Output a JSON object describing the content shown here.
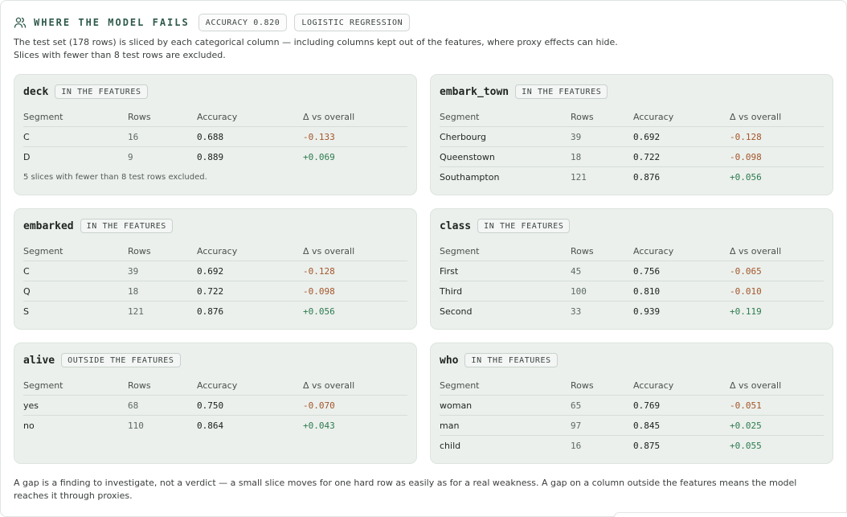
{
  "header": {
    "title": "WHERE THE MODEL FAILS",
    "accuracy_badge": "ACCURACY 0.820",
    "model_badge": "LOGISTIC REGRESSION",
    "icon": "users-icon"
  },
  "intro": {
    "line1": "The test set (178 rows) is sliced by each categorical column — including columns kept out of the features, where proxy effects can hide.",
    "line2": "Slices with fewer than 8 test rows are excluded."
  },
  "table_headers": {
    "segment": "Segment",
    "rows": "Rows",
    "accuracy": "Accuracy",
    "delta": "Δ vs overall"
  },
  "cards": [
    {
      "column": "deck",
      "tag": "IN THE FEATURES",
      "rows": [
        {
          "segment": "C",
          "rows": "16",
          "accuracy": "0.688",
          "delta": "-0.133",
          "sign": "neg"
        },
        {
          "segment": "D",
          "rows": "9",
          "accuracy": "0.889",
          "delta": "+0.069",
          "sign": "pos"
        }
      ],
      "note": "5 slices with fewer than 8 test rows excluded."
    },
    {
      "column": "embark_town",
      "tag": "IN THE FEATURES",
      "rows": [
        {
          "segment": "Cherbourg",
          "rows": "39",
          "accuracy": "0.692",
          "delta": "-0.128",
          "sign": "neg"
        },
        {
          "segment": "Queenstown",
          "rows": "18",
          "accuracy": "0.722",
          "delta": "-0.098",
          "sign": "neg"
        },
        {
          "segment": "Southampton",
          "rows": "121",
          "accuracy": "0.876",
          "delta": "+0.056",
          "sign": "pos"
        }
      ]
    },
    {
      "column": "embarked",
      "tag": "IN THE FEATURES",
      "rows": [
        {
          "segment": "C",
          "rows": "39",
          "accuracy": "0.692",
          "delta": "-0.128",
          "sign": "neg"
        },
        {
          "segment": "Q",
          "rows": "18",
          "accuracy": "0.722",
          "delta": "-0.098",
          "sign": "neg"
        },
        {
          "segment": "S",
          "rows": "121",
          "accuracy": "0.876",
          "delta": "+0.056",
          "sign": "pos"
        }
      ]
    },
    {
      "column": "class",
      "tag": "IN THE FEATURES",
      "rows": [
        {
          "segment": "First",
          "rows": "45",
          "accuracy": "0.756",
          "delta": "-0.065",
          "sign": "neg"
        },
        {
          "segment": "Third",
          "rows": "100",
          "accuracy": "0.810",
          "delta": "-0.010",
          "sign": "neg"
        },
        {
          "segment": "Second",
          "rows": "33",
          "accuracy": "0.939",
          "delta": "+0.119",
          "sign": "pos"
        }
      ]
    },
    {
      "column": "alive",
      "tag": "OUTSIDE THE FEATURES",
      "rows": [
        {
          "segment": "yes",
          "rows": "68",
          "accuracy": "0.750",
          "delta": "-0.070",
          "sign": "neg"
        },
        {
          "segment": "no",
          "rows": "110",
          "accuracy": "0.864",
          "delta": "+0.043",
          "sign": "pos"
        }
      ]
    },
    {
      "column": "who",
      "tag": "IN THE FEATURES",
      "rows": [
        {
          "segment": "woman",
          "rows": "65",
          "accuracy": "0.769",
          "delta": "-0.051",
          "sign": "neg"
        },
        {
          "segment": "man",
          "rows": "97",
          "accuracy": "0.845",
          "delta": "+0.025",
          "sign": "pos"
        },
        {
          "segment": "child",
          "rows": "16",
          "accuracy": "0.875",
          "delta": "+0.055",
          "sign": "pos"
        }
      ]
    }
  ],
  "footer": "A gap is a finding to investigate, not a verdict — a small slice moves for one hard row as easily as for a real weakness. A gap on a column outside the features means the model reaches it through proxies.",
  "colors": {
    "accent": "#2f5a4b",
    "negative": "#a5552a",
    "positive": "#2d7a4f",
    "card_bg": "#ebf0ec"
  }
}
